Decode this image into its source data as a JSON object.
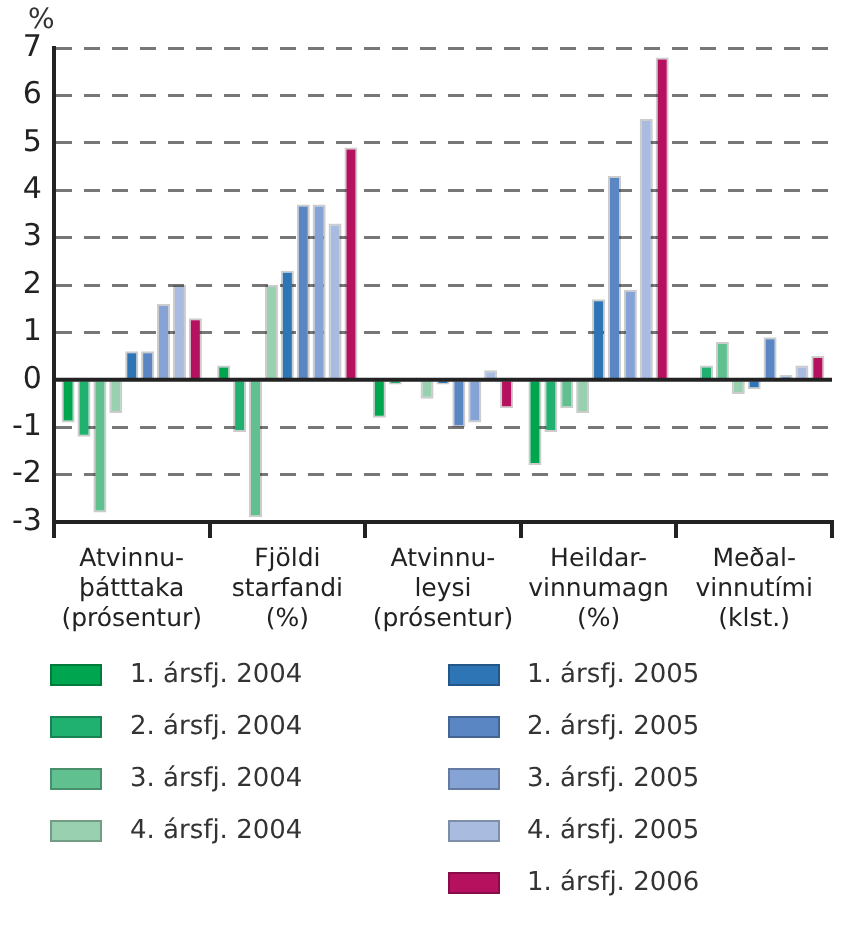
{
  "chart_data": {
    "type": "bar",
    "ylabel": "%",
    "categories": [
      "Atvinnu-\nþátttaka\n(prósentur)",
      "Fjöldi\nstarfandi\n(%)",
      "Atvinnu-\nleysi\n(prósentur)",
      "Heildar-\nvinnumagn\n(%)",
      "Meðal-\nvinnutími\n(klst.)"
    ],
    "series": [
      {
        "name": "1. ársfj. 2004",
        "color": "#00a550",
        "values": [
          -0.9,
          0.3,
          -0.8,
          -1.8,
          0
        ]
      },
      {
        "name": "2. ársfj. 2004",
        "color": "#20b070",
        "values": [
          -1.2,
          -1.1,
          -0.1,
          -1.1,
          0.3
        ]
      },
      {
        "name": "3. ársfj. 2004",
        "color": "#60c090",
        "values": [
          -2.8,
          -2.9,
          0,
          -0.6,
          0.8
        ]
      },
      {
        "name": "4. ársfj. 2004",
        "color": "#98d0b0",
        "values": [
          -0.7,
          2.0,
          -0.4,
          -0.7,
          -0.3
        ]
      },
      {
        "name": "1. ársfj. 2005",
        "color": "#2e75b6",
        "values": [
          0.6,
          2.3,
          -0.1,
          1.7,
          -0.2
        ]
      },
      {
        "name": "2. ársfj. 2005",
        "color": "#5b86c4",
        "values": [
          0.6,
          3.7,
          -1.0,
          4.3,
          0.9
        ]
      },
      {
        "name": "3. ársfj. 2005",
        "color": "#86a3d6",
        "values": [
          1.6,
          3.7,
          -0.9,
          1.9,
          0.1
        ]
      },
      {
        "name": "4. ársfj. 2005",
        "color": "#a9bce0",
        "values": [
          2.0,
          3.3,
          0.2,
          5.5,
          0.3
        ]
      },
      {
        "name": "1. ársfj. 2006",
        "color": "#b5115f",
        "values": [
          1.3,
          4.9,
          -0.6,
          6.8,
          0.5
        ]
      }
    ],
    "ylim": [
      -3,
      7
    ],
    "yticks": [
      -3,
      -2,
      -1,
      0,
      1,
      2,
      3,
      4,
      5,
      6,
      7
    ],
    "grid": "y",
    "legend": "bottom"
  }
}
